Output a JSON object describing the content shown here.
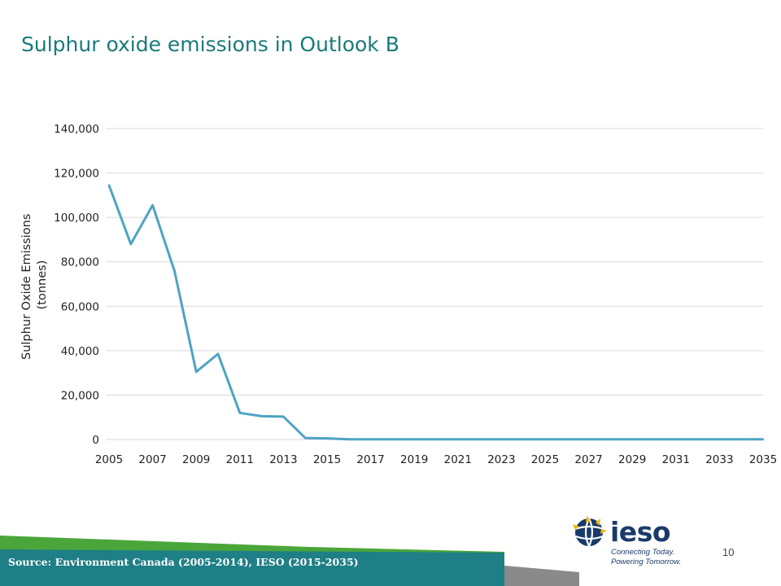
{
  "slide": {
    "title": "Sulphur oxide emissions in Outlook B",
    "title_color": "#1a7a7a",
    "source": "Source: Environment Canada (2005-2014), IESO (2015-2035)",
    "page_number": "10"
  },
  "logo": {
    "name": "ieso",
    "tagline_line1": "Connecting Today.",
    "tagline_line2": "Powering Tomorrow."
  },
  "colors": {
    "line": "#4fa3c4",
    "grid": "#d9d9d9",
    "footer_green": "#4aa63a",
    "footer_teal": "#1f7f86",
    "footer_gray": "#8a8a8a"
  },
  "chart_data": {
    "type": "line",
    "title": "",
    "xlabel": "",
    "ylabel_lines": [
      "Sulphur Oxide Emissions",
      "(tonnes)"
    ],
    "x": [
      2005,
      2006,
      2007,
      2008,
      2009,
      2010,
      2011,
      2012,
      2013,
      2014,
      2015,
      2016,
      2017,
      2018,
      2019,
      2020,
      2021,
      2022,
      2023,
      2024,
      2025,
      2026,
      2027,
      2028,
      2029,
      2030,
      2031,
      2032,
      2033,
      2034,
      2035
    ],
    "xticks": [
      "2005",
      "2007",
      "2009",
      "2011",
      "2013",
      "2015",
      "2017",
      "2019",
      "2021",
      "2023",
      "2025",
      "2027",
      "2029",
      "2031",
      "2033",
      "2035"
    ],
    "series": [
      {
        "values": [
          114500,
          88000,
          105500,
          76000,
          30500,
          38500,
          12000,
          10500,
          10300,
          700,
          500,
          100,
          100,
          100,
          100,
          100,
          100,
          100,
          100,
          100,
          100,
          100,
          100,
          100,
          100,
          100,
          100,
          100,
          100,
          100,
          100
        ]
      }
    ],
    "ylim": [
      0,
      140000
    ],
    "yticks": [
      "0",
      "20,000",
      "40,000",
      "60,000",
      "80,000",
      "100,000",
      "120,000",
      "140,000"
    ],
    "grid": true,
    "legend": "none"
  }
}
